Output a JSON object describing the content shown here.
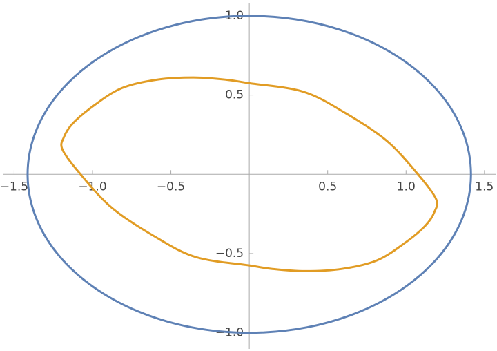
{
  "chart_data": {
    "type": "line",
    "xlim": [
      -1.59,
      1.58
    ],
    "ylim": [
      -1.115,
      1.1
    ],
    "xticks": [
      {
        "value": -1.5,
        "label": "−1.5"
      },
      {
        "value": -1.0,
        "label": "−1.0"
      },
      {
        "value": -0.5,
        "label": "−0.5"
      },
      0.5,
      {
        "value": 1.0,
        "label": "1.0"
      },
      1.5
    ],
    "yticks": [
      {
        "value": -1.0,
        "label": "−1.0"
      },
      {
        "value": -0.5,
        "label": "−0.5"
      },
      0.5,
      {
        "value": 1.0,
        "label": "1.0"
      }
    ],
    "series": [
      {
        "color": "#5e81b5",
        "x": [
          1.414,
          1.366,
          1.225,
          1.0,
          0.707,
          0.366,
          0,
          -0.366,
          -0.707,
          -1.0,
          -1.225,
          -1.366,
          -1.414,
          -1.366,
          -1.225,
          -1.0,
          -0.707,
          -0.366,
          0,
          0.366,
          0.707,
          1.0,
          1.225,
          1.366
        ],
        "values": [
          0,
          0.259,
          0.5,
          0.707,
          0.866,
          0.966,
          1,
          0.966,
          0.866,
          0.707,
          0.5,
          0.259,
          0,
          -0.259,
          -0.5,
          -0.707,
          -0.866,
          -0.966,
          -1,
          -0.966,
          -0.866,
          -0.707,
          -0.5,
          -0.259
        ]
      },
      {
        "color": "#e19c24",
        "x": [
          1.191,
          1.076,
          0.876,
          0.609,
          0.342,
          0,
          -0.147,
          -0.356,
          -0.591,
          -0.813,
          -0.991,
          -1.124,
          -1.182,
          -1.191,
          -1.076,
          -0.876,
          -0.609,
          -0.342,
          0,
          0.147,
          0.356,
          0.591,
          0.813,
          0.991,
          1.124,
          1.182
        ],
        "values": [
          -0.155,
          0,
          0.212,
          0.389,
          0.522,
          0.575,
          0.597,
          0.611,
          0.597,
          0.544,
          0.434,
          0.323,
          0.235,
          0.155,
          0,
          -0.212,
          -0.389,
          -0.522,
          -0.575,
          -0.597,
          -0.611,
          -0.597,
          -0.544,
          -0.434,
          -0.323,
          -0.235
        ]
      }
    ]
  }
}
